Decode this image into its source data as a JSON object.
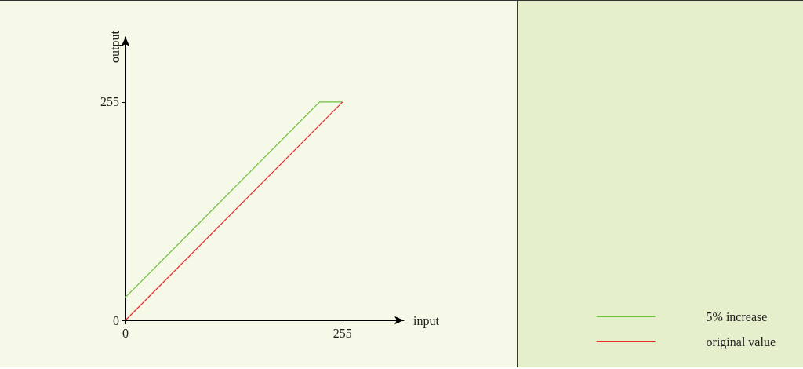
{
  "chart_data": {
    "type": "line",
    "xlabel": "input",
    "ylabel": "output",
    "xlim": [
      0,
      327
    ],
    "ylim": [
      0,
      331
    ],
    "xticks": [
      0,
      255
    ],
    "yticks": [
      0,
      255
    ],
    "series": [
      {
        "name": "5% increase",
        "color": "#6cbf3c",
        "x": [
          0,
          228,
          255
        ],
        "values": [
          27,
          255,
          255
        ]
      },
      {
        "name": "original value",
        "color": "#e8282a",
        "x": [
          0,
          255
        ],
        "values": [
          0,
          255
        ]
      }
    ],
    "grid": false,
    "legend": "bottom right",
    "marker": "none",
    "line_style": "solid"
  }
}
